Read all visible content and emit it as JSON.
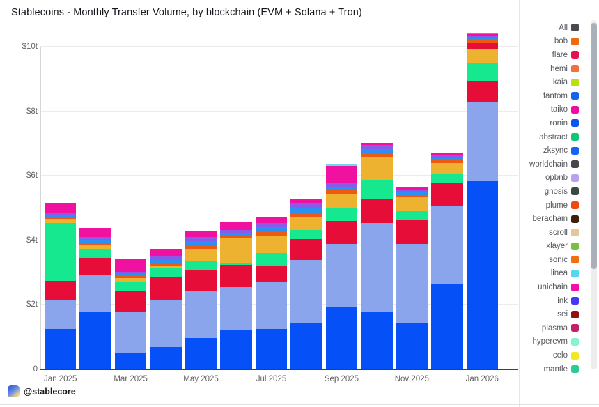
{
  "title": "Stablecoins - Monthly Transfer Volume, by blockchain (EVM + Solana + Tron)",
  "watermark": {
    "handle": "@stablecore"
  },
  "legend": {
    "scrollable": true,
    "items": [
      {
        "label": "All",
        "color": "#4a4a52"
      },
      {
        "label": "bob",
        "color": "#f2690d"
      },
      {
        "label": "flare",
        "color": "#e3114d"
      },
      {
        "label": "hemi",
        "color": "#f4703a"
      },
      {
        "label": "kaia",
        "color": "#b8e011"
      },
      {
        "label": "fantom",
        "color": "#1961ef"
      },
      {
        "label": "taiko",
        "color": "#ef0d9e"
      },
      {
        "label": "ronin",
        "color": "#0d54ef"
      },
      {
        "label": "abstract",
        "color": "#12c475"
      },
      {
        "label": "zksync",
        "color": "#1565f0"
      },
      {
        "label": "worldchain",
        "color": "#46474c"
      },
      {
        "label": "opbnb",
        "color": "#b5a3f0"
      },
      {
        "label": "gnosis",
        "color": "#3a4a42"
      },
      {
        "label": "plume",
        "color": "#f04a0d"
      },
      {
        "label": "berachain",
        "color": "#3d1f0a"
      },
      {
        "label": "scroll",
        "color": "#e5c59a"
      },
      {
        "label": "xlayer",
        "color": "#77c043"
      },
      {
        "label": "sonic",
        "color": "#f07011"
      },
      {
        "label": "linea",
        "color": "#54d8f0"
      },
      {
        "label": "unichain",
        "color": "#f50da8"
      },
      {
        "label": "ink",
        "color": "#4338f5"
      },
      {
        "label": "sei",
        "color": "#8f1111"
      },
      {
        "label": "plasma",
        "color": "#c22069"
      },
      {
        "label": "hyperevm",
        "color": "#84f5cf"
      },
      {
        "label": "celo",
        "color": "#f0e823"
      },
      {
        "label": "mantle",
        "color": "#2ec998"
      }
    ]
  },
  "chart_data": {
    "type": "bar",
    "stacked": true,
    "title": "Stablecoins - Monthly Transfer Volume, by blockchain (EVM + Solana + Tron)",
    "y_unit": "trillions USD",
    "ylim": [
      0,
      10.6
    ],
    "grid": "horizontal",
    "legend_position": "right",
    "categories": [
      "Jan 2025",
      "Feb 2025",
      "Mar 2025",
      "Apr 2025",
      "May 2025",
      "Jun 2025",
      "Jul 2025",
      "Aug 2025",
      "Sep 2025",
      "Oct 2025",
      "Nov 2025",
      "Dec 2025",
      "Jan 2026"
    ],
    "x_axis_tick_indices": [
      0,
      2,
      4,
      6,
      8,
      10,
      12
    ],
    "x_axis_tick_labels": [
      "Jan 2025",
      "Mar 2025",
      "May 2025",
      "Jul 2025",
      "Sep 2025",
      "Nov 2025",
      "Jan 2026"
    ],
    "y_axis_ticks": [
      {
        "value": 0,
        "label": "0"
      },
      {
        "value": 2,
        "label": "$2t"
      },
      {
        "value": 4,
        "label": "$4t"
      },
      {
        "value": 6,
        "label": "$6t"
      },
      {
        "value": 8,
        "label": "$8t"
      },
      {
        "value": 10,
        "label": "$10t"
      }
    ],
    "series": [
      {
        "name": "segment-blue",
        "color": "#0551f7",
        "values": [
          1.25,
          1.8,
          0.52,
          0.69,
          0.97,
          1.23,
          1.25,
          1.43,
          1.94,
          1.79,
          1.43,
          2.63,
          5.85
        ]
      },
      {
        "name": "segment-light-blue",
        "color": "#8aa5ec",
        "values": [
          0.91,
          1.12,
          1.27,
          1.45,
          1.45,
          1.32,
          1.45,
          1.97,
          1.94,
          2.74,
          2.46,
          2.42,
          2.42
        ]
      },
      {
        "name": "segment-red",
        "color": "#e60d38",
        "values": [
          0.58,
          0.54,
          0.65,
          0.71,
          0.65,
          0.69,
          0.52,
          0.65,
          0.73,
          0.76,
          0.73,
          0.73,
          0.67
        ]
      },
      {
        "name": "segment-green",
        "color": "#16e88f",
        "values": [
          1.79,
          0.26,
          0.26,
          0.28,
          0.28,
          0.05,
          0.39,
          0.28,
          0.41,
          0.58,
          0.28,
          0.3,
          0.56
        ]
      },
      {
        "name": "segment-amber",
        "color": "#ecb230",
        "values": [
          0.13,
          0.13,
          0.13,
          0.09,
          0.39,
          0.78,
          0.54,
          0.39,
          0.43,
          0.71,
          0.43,
          0.32,
          0.43
        ]
      },
      {
        "name": "segment-red-upper",
        "color": "#e60d38",
        "values": [
          0,
          0,
          0,
          0,
          0,
          0,
          0,
          0,
          0,
          0,
          0,
          0,
          0.2
        ]
      },
      {
        "name": "stripe-orange",
        "color": "#ee5a11",
        "values": [
          0.06,
          0.08,
          0.06,
          0.09,
          0.12,
          0.08,
          0.13,
          0.14,
          0.1,
          0.12,
          0.08,
          0.08,
          0.07
        ]
      },
      {
        "name": "stripe-sky-blue",
        "color": "#2b90f2",
        "values": [
          0.06,
          0.09,
          0.06,
          0.09,
          0.12,
          0.09,
          0.13,
          0.14,
          0.11,
          0.12,
          0.08,
          0.08,
          0.07
        ]
      },
      {
        "name": "stripe-violet",
        "color": "#8a5ae8",
        "values": [
          0.07,
          0.09,
          0.07,
          0.1,
          0.13,
          0.09,
          0.13,
          0.15,
          0.11,
          0.13,
          0.08,
          0.08,
          0.06
        ]
      },
      {
        "name": "segment-magenta",
        "color": "#f011a0",
        "values": [
          0.28,
          0.28,
          0.39,
          0.24,
          0.19,
          0.22,
          0.17,
          0.11,
          0.54,
          0.06,
          0.06,
          0.06,
          0.06
        ]
      },
      {
        "name": "cap-gray",
        "color": "#8c9096",
        "values": [
          0,
          0,
          0,
          0,
          0,
          0,
          0,
          0,
          0,
          0,
          0,
          0,
          0.05
        ]
      },
      {
        "name": "cap-cyan",
        "color": "#6cd9f2",
        "values": [
          0,
          0,
          0,
          0,
          0,
          0,
          0,
          0,
          0.06,
          0,
          0,
          0,
          0
        ]
      }
    ],
    "totals_trillions": [
      5.13,
      4.39,
      3.41,
      3.74,
      4.3,
      4.55,
      4.71,
      5.26,
      6.37,
      7.01,
      5.63,
      6.7,
      10.44
    ]
  }
}
